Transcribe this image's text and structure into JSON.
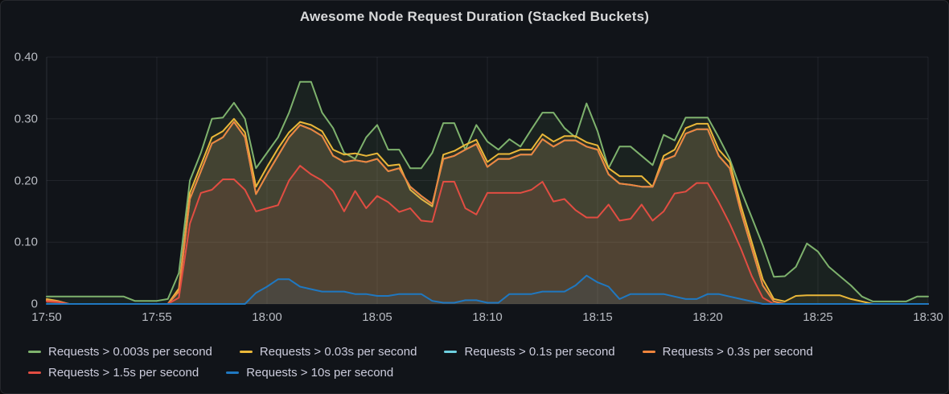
{
  "panel": {
    "title": "Awesome Node Request Duration (Stacked Buckets)"
  },
  "colors": {
    "background": "#111419",
    "border": "#26282d",
    "grid": "rgba(204,204,220,0.09)",
    "axis_line": "rgba(204,204,220,0.15)",
    "text": "#d8d9da",
    "tick_text": "#b8bbc2"
  },
  "chart_data": {
    "type": "area",
    "title": "Awesome Node Request Duration (Stacked Buckets)",
    "xlabel": "",
    "ylabel": "",
    "x_ticks": [
      "17:50",
      "17:55",
      "18:00",
      "18:05",
      "18:10",
      "18:15",
      "18:20",
      "18:25",
      "18:30"
    ],
    "y_ticks": [
      "0.40",
      "0.30",
      "0.20",
      "0.10",
      "0"
    ],
    "ylim": [
      0,
      0.4
    ],
    "x_range_minutes": [
      0,
      40
    ],
    "step_minutes": 0.5,
    "grid": true,
    "legend_position": "bottom-left",
    "fill_opacity": 0.09,
    "series": [
      {
        "name": "Requests > 0.003s per second",
        "color": "#7EB26D",
        "values": [
          0.012,
          0.012,
          0.012,
          0.012,
          0.012,
          0.012,
          0.012,
          0.012,
          0.005,
          0.005,
          0.005,
          0.008,
          0.05,
          0.2,
          0.245,
          0.3,
          0.302,
          0.326,
          0.3,
          0.22,
          0.245,
          0.27,
          0.31,
          0.36,
          0.36,
          0.31,
          0.285,
          0.245,
          0.235,
          0.27,
          0.29,
          0.25,
          0.25,
          0.22,
          0.22,
          0.245,
          0.293,
          0.293,
          0.25,
          0.29,
          0.263,
          0.25,
          0.267,
          0.255,
          0.283,
          0.31,
          0.31,
          0.285,
          0.27,
          0.325,
          0.28,
          0.22,
          0.255,
          0.255,
          0.24,
          0.225,
          0.274,
          0.265,
          0.302,
          0.302,
          0.302,
          0.27,
          0.235,
          0.185,
          0.14,
          0.095,
          0.044,
          0.045,
          0.06,
          0.098,
          0.085,
          0.06,
          0.045,
          0.03,
          0.012,
          0.004,
          0.004,
          0.004,
          0.004,
          0.012,
          0.012
        ]
      },
      {
        "name": "Requests > 0.03s per second",
        "color": "#EAB839",
        "values": [
          0.008,
          0.005,
          0,
          0,
          0,
          0,
          0,
          0,
          0,
          0,
          0,
          0,
          0.025,
          0.18,
          0.225,
          0.27,
          0.28,
          0.3,
          0.278,
          0.19,
          0.222,
          0.252,
          0.278,
          0.295,
          0.29,
          0.28,
          0.25,
          0.242,
          0.244,
          0.24,
          0.244,
          0.224,
          0.226,
          0.185,
          0.17,
          0.158,
          0.242,
          0.248,
          0.258,
          0.266,
          0.23,
          0.243,
          0.243,
          0.25,
          0.25,
          0.275,
          0.263,
          0.272,
          0.272,
          0.262,
          0.257,
          0.22,
          0.207,
          0.207,
          0.207,
          0.19,
          0.24,
          0.25,
          0.285,
          0.292,
          0.292,
          0.25,
          0.23,
          0.16,
          0.1,
          0.04,
          0.008,
          0.004,
          0.013,
          0.014,
          0.014,
          0.014,
          0.014,
          0.008,
          0.004,
          0,
          0,
          0,
          0,
          0,
          0
        ]
      },
      {
        "name": "Requests > 0.1s per second",
        "color": "#6ED0E0",
        "values": [
          0.006,
          0.004,
          0,
          0,
          0,
          0,
          0,
          0,
          0,
          0,
          0,
          0,
          0.02,
          0.17,
          0.215,
          0.26,
          0.27,
          0.295,
          0.27,
          0.178,
          0.21,
          0.24,
          0.27,
          0.29,
          0.283,
          0.272,
          0.24,
          0.23,
          0.233,
          0.23,
          0.235,
          0.215,
          0.22,
          0.19,
          0.175,
          0.162,
          0.235,
          0.24,
          0.25,
          0.259,
          0.222,
          0.235,
          0.235,
          0.242,
          0.242,
          0.267,
          0.255,
          0.265,
          0.265,
          0.255,
          0.25,
          0.21,
          0.195,
          0.193,
          0.19,
          0.19,
          0.233,
          0.24,
          0.276,
          0.283,
          0.283,
          0.24,
          0.22,
          0.15,
          0.09,
          0.03,
          0.004,
          0,
          0,
          0,
          0,
          0,
          0,
          0,
          0,
          0,
          0,
          0,
          0,
          0,
          0
        ]
      },
      {
        "name": "Requests > 0.3s per second",
        "color": "#EF843C",
        "values": [
          0.006,
          0.004,
          0,
          0,
          0,
          0,
          0,
          0,
          0,
          0,
          0,
          0,
          0.02,
          0.17,
          0.215,
          0.26,
          0.27,
          0.295,
          0.27,
          0.178,
          0.21,
          0.24,
          0.27,
          0.29,
          0.283,
          0.272,
          0.24,
          0.23,
          0.233,
          0.23,
          0.235,
          0.215,
          0.22,
          0.19,
          0.175,
          0.162,
          0.235,
          0.24,
          0.25,
          0.259,
          0.222,
          0.235,
          0.235,
          0.242,
          0.242,
          0.267,
          0.255,
          0.265,
          0.265,
          0.255,
          0.25,
          0.21,
          0.195,
          0.193,
          0.19,
          0.19,
          0.233,
          0.24,
          0.276,
          0.283,
          0.283,
          0.24,
          0.22,
          0.15,
          0.09,
          0.03,
          0.004,
          0,
          0,
          0,
          0,
          0,
          0,
          0,
          0,
          0,
          0,
          0,
          0,
          0,
          0
        ]
      },
      {
        "name": "Requests > 1.5s per second",
        "color": "#E24D42",
        "values": [
          0.004,
          0.003,
          0,
          0,
          0,
          0,
          0,
          0,
          0,
          0,
          0,
          0,
          0.01,
          0.13,
          0.18,
          0.185,
          0.202,
          0.202,
          0.185,
          0.15,
          0.155,
          0.16,
          0.2,
          0.224,
          0.21,
          0.2,
          0.183,
          0.15,
          0.183,
          0.155,
          0.175,
          0.165,
          0.149,
          0.155,
          0.135,
          0.133,
          0.198,
          0.198,
          0.155,
          0.145,
          0.18,
          0.18,
          0.18,
          0.18,
          0.185,
          0.198,
          0.166,
          0.17,
          0.152,
          0.14,
          0.14,
          0.161,
          0.135,
          0.138,
          0.161,
          0.135,
          0.15,
          0.179,
          0.182,
          0.196,
          0.196,
          0.165,
          0.13,
          0.09,
          0.045,
          0.01,
          0,
          0,
          0,
          0,
          0,
          0,
          0,
          0,
          0,
          0,
          0,
          0,
          0,
          0,
          0
        ]
      },
      {
        "name": "Requests > 10s per second",
        "color": "#1F78C1",
        "values": [
          0,
          0,
          0,
          0,
          0,
          0,
          0,
          0,
          0,
          0,
          0,
          0,
          0,
          0,
          0,
          0,
          0,
          0,
          0,
          0.018,
          0.028,
          0.04,
          0.04,
          0.028,
          0.024,
          0.02,
          0.02,
          0.02,
          0.016,
          0.016,
          0.013,
          0.013,
          0.016,
          0.016,
          0.016,
          0.005,
          0.002,
          0.002,
          0.006,
          0.006,
          0.002,
          0.002,
          0.016,
          0.016,
          0.016,
          0.02,
          0.02,
          0.02,
          0.03,
          0.046,
          0.035,
          0.028,
          0.008,
          0.016,
          0.016,
          0.016,
          0.016,
          0.012,
          0.008,
          0.008,
          0.016,
          0.016,
          0.012,
          0.008,
          0.004,
          0,
          0,
          0,
          0,
          0,
          0,
          0,
          0,
          0,
          0,
          0,
          0,
          0,
          0,
          0,
          0
        ]
      }
    ]
  }
}
